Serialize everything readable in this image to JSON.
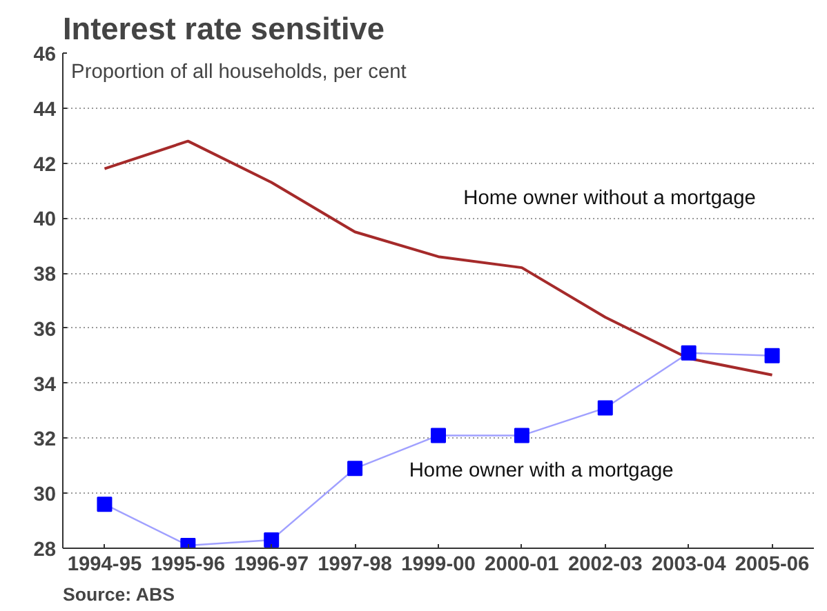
{
  "chart_data": {
    "type": "line",
    "title": "Interest rate sensitive",
    "subtitle": "Proportion of all households, per cent",
    "categories": [
      "1994-95",
      "1995-96",
      "1996-97",
      "1997-98",
      "1999-00",
      "2000-01",
      "2002-03",
      "2003-04",
      "2005-06"
    ],
    "series": [
      {
        "name": "Home owner without a mortgage",
        "color": "#a52a2a",
        "values": [
          41.8,
          42.8,
          41.3,
          39.5,
          38.6,
          38.2,
          36.4,
          34.9,
          34.3
        ]
      },
      {
        "name": "Home owner with a mortgage",
        "color": "#0000ff",
        "marker": "square",
        "values": [
          29.6,
          28.1,
          28.3,
          30.9,
          32.1,
          32.1,
          33.1,
          35.1,
          35.0
        ]
      }
    ],
    "ylim": [
      28,
      46
    ],
    "yticks": [
      28,
      30,
      32,
      34,
      36,
      38,
      40,
      42,
      44,
      46
    ],
    "grid": "y",
    "annotations": [
      "Source: ABS"
    ]
  }
}
